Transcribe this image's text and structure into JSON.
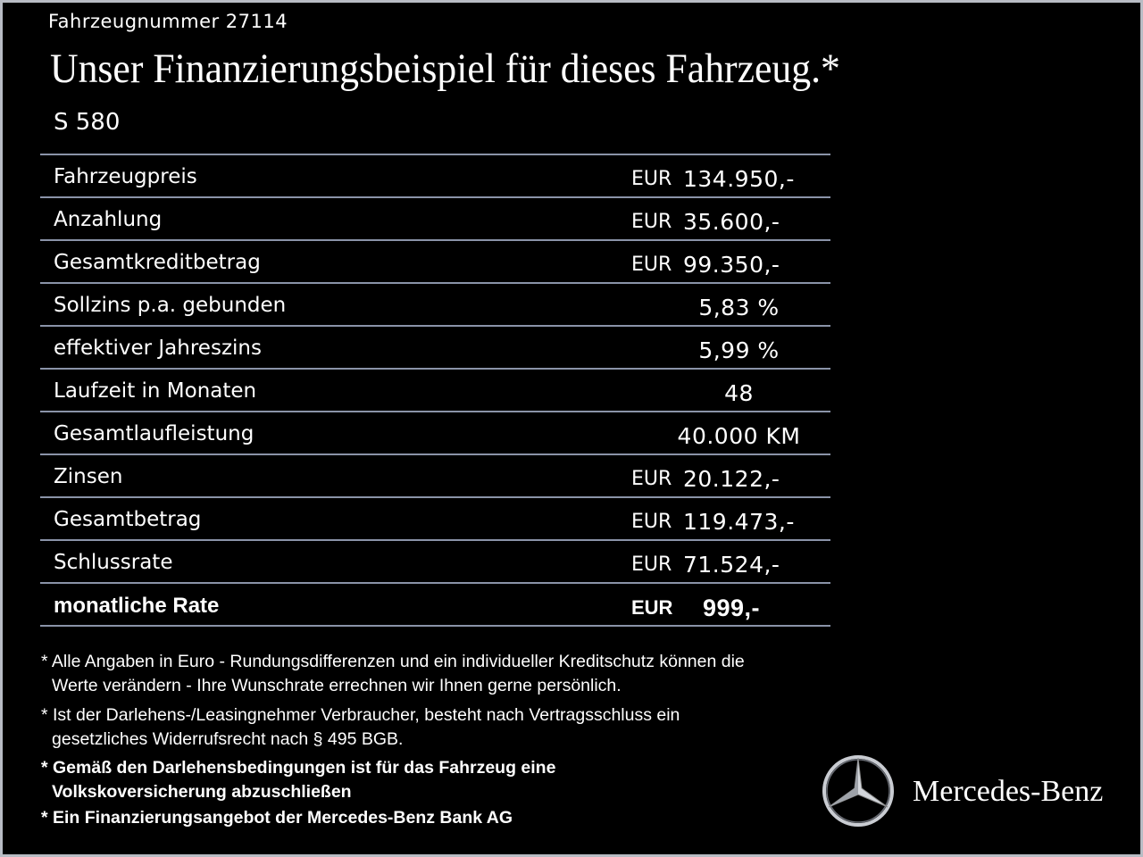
{
  "header": {
    "vehicle_number": "Fahrzeugnummer  27114",
    "title": "Unser Finanzierungsbeispiel für dieses Fahrzeug.*",
    "model": "S 580"
  },
  "table": {
    "rows": [
      {
        "label": "Fahrzeugpreis",
        "currency": "EUR",
        "amount": "134.950,-"
      },
      {
        "label": "Anzahlung",
        "currency": "EUR",
        "amount": "35.600,-"
      },
      {
        "label": "Gesamtkreditbetrag",
        "currency": "EUR",
        "amount": "99.350,-"
      },
      {
        "label": "Sollzins p.a. gebunden",
        "amount": "5,83 %"
      },
      {
        "label": "effektiver Jahreszins",
        "amount": "5,99 %"
      },
      {
        "label": "Laufzeit in Monaten",
        "amount": "48"
      },
      {
        "label": "Gesamtlaufleistung",
        "amount": "40.000 KM"
      },
      {
        "label": "Zinsen",
        "currency": "EUR",
        "amount": "20.122,-"
      },
      {
        "label": "Gesamtbetrag",
        "currency": "EUR",
        "amount": "119.473,-"
      },
      {
        "label": "Schlussrate",
        "currency": "EUR",
        "amount": "71.524,-"
      },
      {
        "label": "monatliche Rate",
        "currency": "EUR",
        "amount": "999,-"
      }
    ]
  },
  "footnotes": [
    {
      "lines": [
        "* Alle Angaben in Euro - Rundungsdifferenzen und ein individueller Kreditschutz können die",
        "Werte verändern - Ihre Wunschrate errechnen wir Ihnen gerne persönlich."
      ]
    },
    {
      "lines": [
        "* Ist der Darlehens-/Leasingnehmer Verbraucher, besteht nach Vertragsschluss ein",
        "gesetzliches Widerrufsrecht nach § 495 BGB."
      ]
    },
    {
      "lines": [
        "* Gemäß den Darlehensbedingungen ist für das Fahrzeug eine",
        "Volkskoversicherung abzuschließen"
      ]
    },
    {
      "lines": [
        "* Ein Finanzierungsangebot der Mercedes-Benz Bank AG"
      ]
    }
  ],
  "brand": "Mercedes-Benz"
}
